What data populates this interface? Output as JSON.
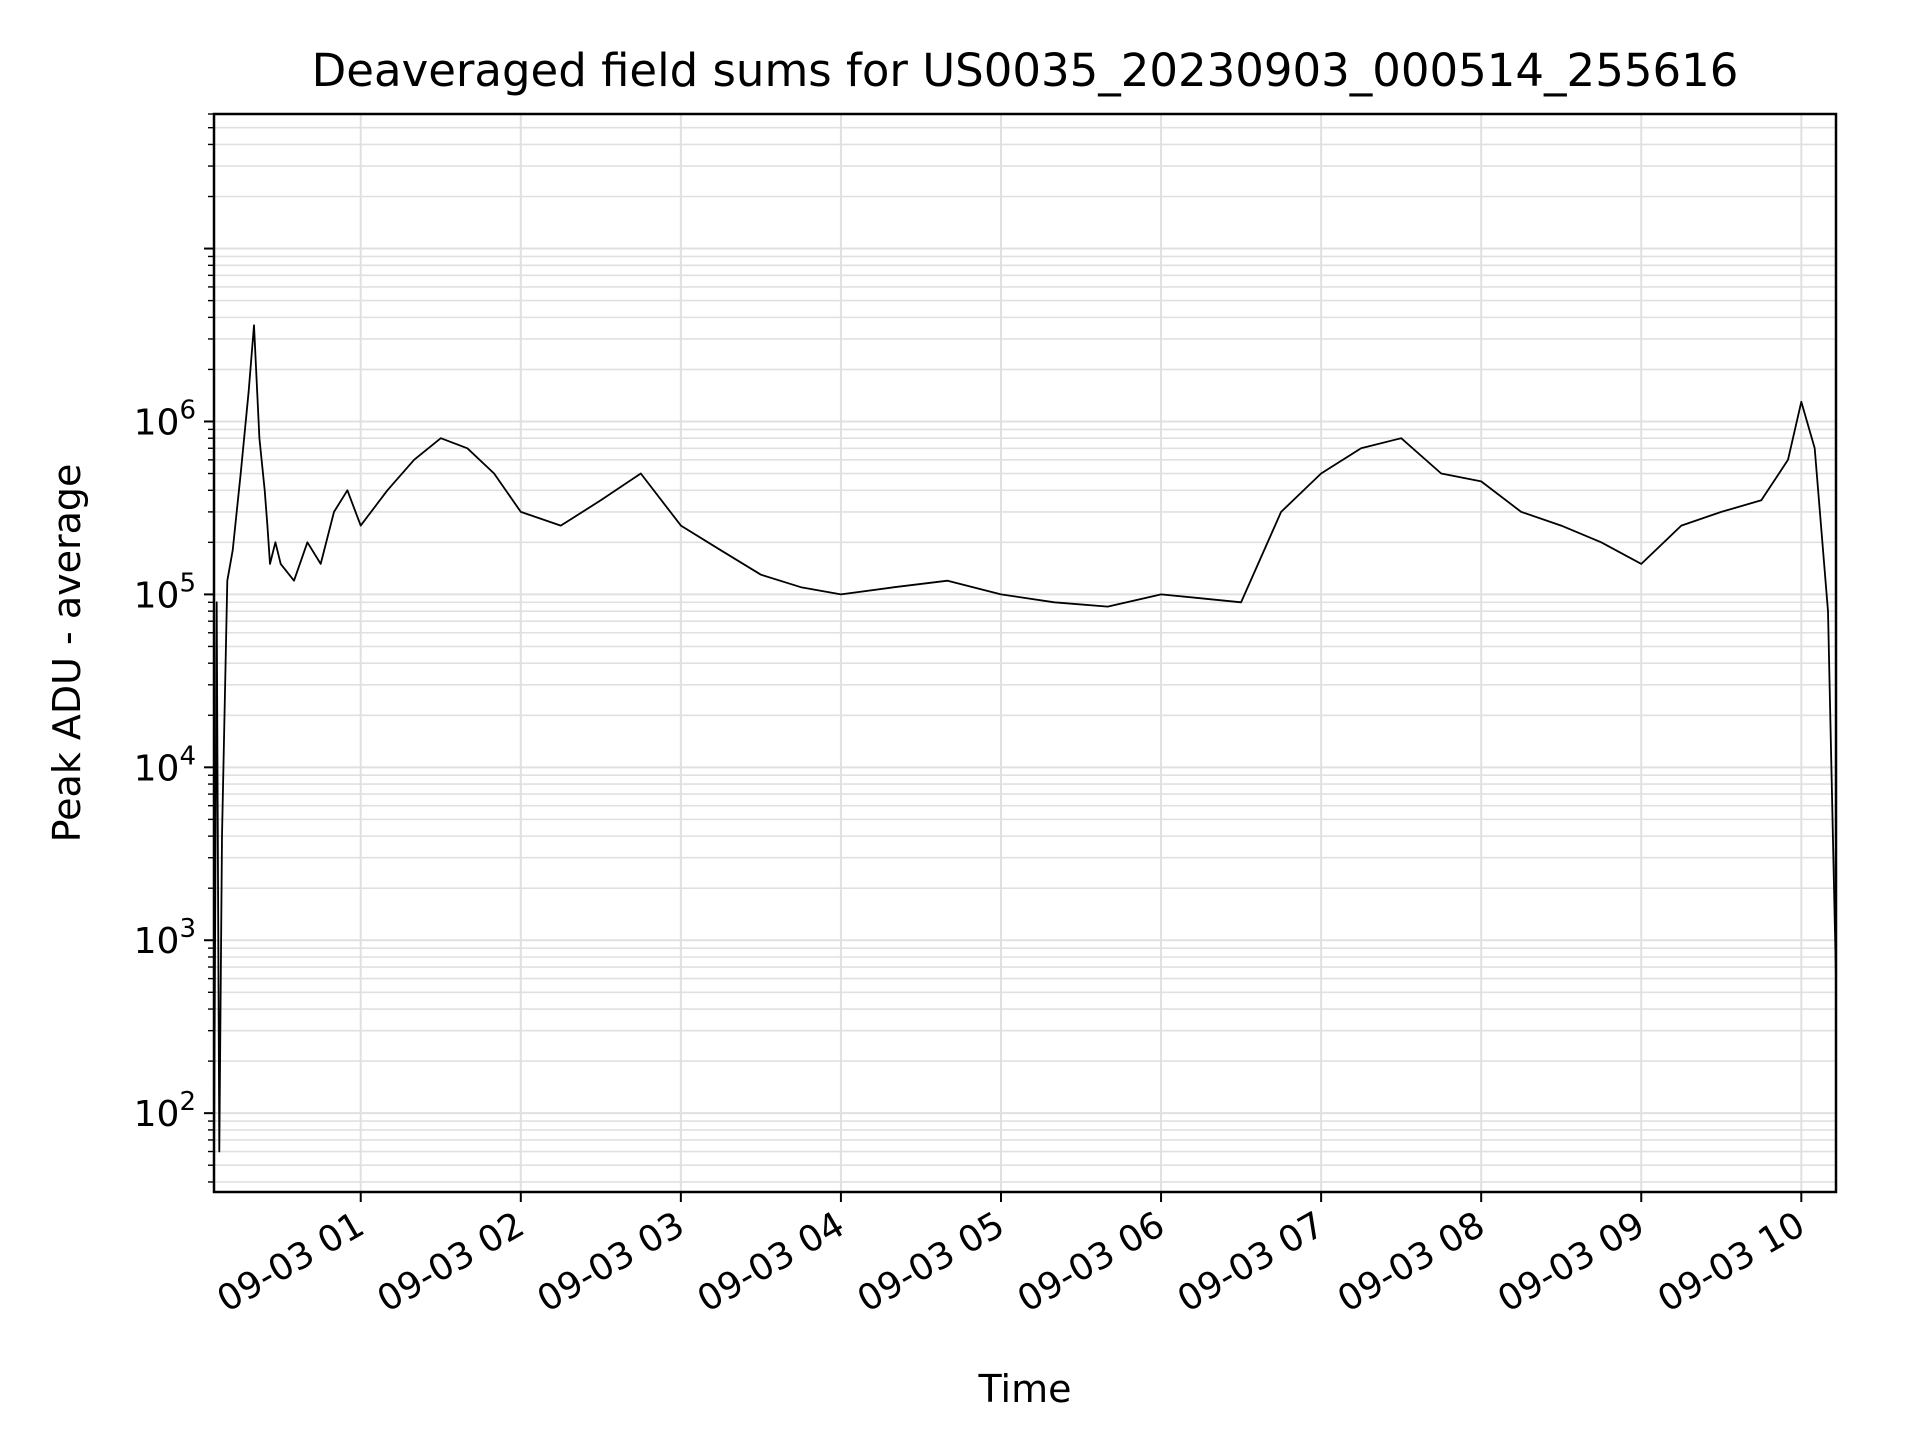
{
  "chart_data": {
    "type": "line",
    "title": "Deaveraged field sums for US0035_20230903_000514_255616",
    "xlabel": "Time",
    "ylabel": "Peak ADU - average",
    "y_scale": "log",
    "ylim": [
      35,
      60000000
    ],
    "xlim": [
      "2023-09-03 00:05",
      "2023-09-03 10:13"
    ],
    "grid": true,
    "legend": "none",
    "line_color": "#000000",
    "grid_color": "#e0e0e0",
    "x_ticks": [
      {
        "value": "2023-09-03 01:00",
        "label": "09-03 01"
      },
      {
        "value": "2023-09-03 02:00",
        "label": "09-03 02"
      },
      {
        "value": "2023-09-03 03:00",
        "label": "09-03 03"
      },
      {
        "value": "2023-09-03 04:00",
        "label": "09-03 04"
      },
      {
        "value": "2023-09-03 05:00",
        "label": "09-03 05"
      },
      {
        "value": "2023-09-03 06:00",
        "label": "09-03 06"
      },
      {
        "value": "2023-09-03 07:00",
        "label": "09-03 07"
      },
      {
        "value": "2023-09-03 08:00",
        "label": "09-03 08"
      },
      {
        "value": "2023-09-03 09:00",
        "label": "09-03 09"
      },
      {
        "value": "2023-09-03 10:00",
        "label": "09-03 10"
      }
    ],
    "y_ticks": [
      {
        "value": 100,
        "base": "10",
        "exp": "2"
      },
      {
        "value": 1000,
        "base": "10",
        "exp": "3"
      },
      {
        "value": 10000,
        "base": "10",
        "exp": "4"
      },
      {
        "value": 100000,
        "base": "10",
        "exp": "5"
      },
      {
        "value": 1000000,
        "base": "10",
        "exp": "6"
      }
    ],
    "series": [
      {
        "x": [
          "2023-09-03 00:05",
          "2023-09-03 00:06",
          "2023-09-03 00:07",
          "2023-09-03 00:08",
          "2023-09-03 00:10",
          "2023-09-03 00:12",
          "2023-09-03 00:15",
          "2023-09-03 00:18",
          "2023-09-03 00:20",
          "2023-09-03 00:22",
          "2023-09-03 00:24",
          "2023-09-03 00:25",
          "2023-09-03 00:26",
          "2023-09-03 00:28",
          "2023-09-03 00:30",
          "2023-09-03 00:35",
          "2023-09-03 00:40",
          "2023-09-03 00:45",
          "2023-09-03 00:50",
          "2023-09-03 00:55",
          "2023-09-03 01:00",
          "2023-09-03 01:10",
          "2023-09-03 01:20",
          "2023-09-03 01:30",
          "2023-09-03 01:40",
          "2023-09-03 01:50",
          "2023-09-03 02:00",
          "2023-09-03 02:15",
          "2023-09-03 02:30",
          "2023-09-03 02:45",
          "2023-09-03 03:00",
          "2023-09-03 03:15",
          "2023-09-03 03:30",
          "2023-09-03 03:45",
          "2023-09-03 04:00",
          "2023-09-03 04:20",
          "2023-09-03 04:40",
          "2023-09-03 05:00",
          "2023-09-03 05:20",
          "2023-09-03 05:40",
          "2023-09-03 06:00",
          "2023-09-03 06:15",
          "2023-09-03 06:30",
          "2023-09-03 06:45",
          "2023-09-03 07:00",
          "2023-09-03 07:15",
          "2023-09-03 07:30",
          "2023-09-03 07:45",
          "2023-09-03 08:00",
          "2023-09-03 08:15",
          "2023-09-03 08:30",
          "2023-09-03 08:45",
          "2023-09-03 09:00",
          "2023-09-03 09:15",
          "2023-09-03 09:30",
          "2023-09-03 09:45",
          "2023-09-03 09:55",
          "2023-09-03 10:00",
          "2023-09-03 10:05",
          "2023-09-03 10:10",
          "2023-09-03 10:13"
        ],
        "y": [
          50,
          90000,
          60,
          4000,
          120000,
          180000,
          500000,
          1500000,
          3600000,
          800000,
          400000,
          250000,
          150000,
          200000,
          150000,
          120000,
          200000,
          150000,
          300000,
          400000,
          250000,
          400000,
          600000,
          800000,
          700000,
          500000,
          300000,
          250000,
          350000,
          500000,
          250000,
          180000,
          130000,
          110000,
          100000,
          110000,
          120000,
          100000,
          90000,
          85000,
          100000,
          95000,
          90000,
          300000,
          500000,
          700000,
          800000,
          500000,
          450000,
          300000,
          250000,
          200000,
          150000,
          250000,
          300000,
          350000,
          600000,
          1300000,
          700000,
          80000,
          600
        ]
      }
    ]
  }
}
